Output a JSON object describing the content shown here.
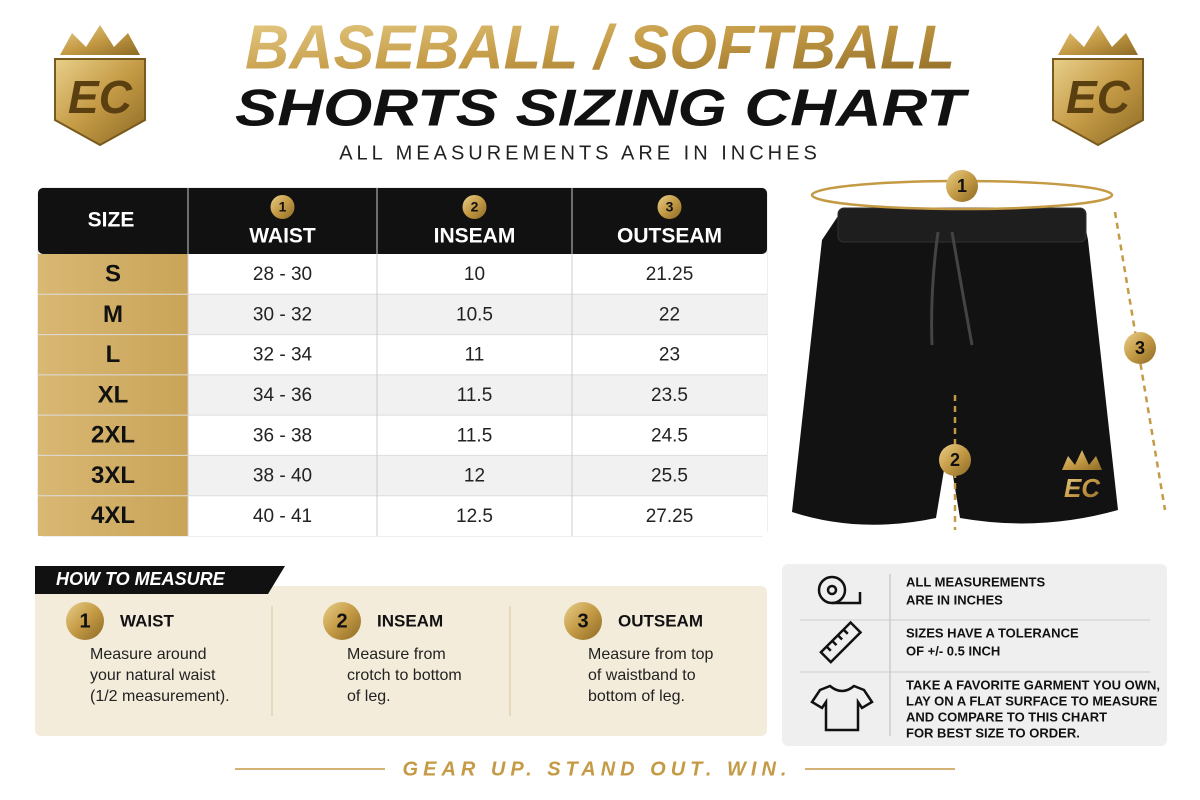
{
  "header": {
    "title_line1": "BASEBALL / SOFTBALL",
    "title_line2": "SHORTS SIZING CHART",
    "subtitle": "ALL MEASUREMENTS ARE IN INCHES",
    "logo": "EC"
  },
  "table": {
    "size_header": "SIZE",
    "columns": [
      {
        "number": 1,
        "label": "WAIST"
      },
      {
        "number": 2,
        "label": "INSEAM"
      },
      {
        "number": 3,
        "label": "OUTSEAM"
      }
    ],
    "rows": [
      [
        "S",
        "28 - 30",
        "10",
        "21.25"
      ],
      [
        "M",
        "30 - 32",
        "10.5",
        "22"
      ],
      [
        "L",
        "32 - 34",
        "11",
        "23"
      ],
      [
        "XL",
        "34 - 36",
        "11.5",
        "23.5"
      ],
      [
        "2XL",
        "36 - 38",
        "11.5",
        "24.5"
      ],
      [
        "3XL",
        "38 - 40",
        "12",
        "25.5"
      ],
      [
        "4XL",
        "40 - 41",
        "12.5",
        "27.25"
      ]
    ]
  },
  "how_to_measure": {
    "title": "HOW TO MEASURE",
    "steps": [
      {
        "number": 1,
        "label": "WAIST",
        "lines": [
          "Measure around",
          "your natural waist",
          "(1/2 measurement)."
        ]
      },
      {
        "number": 2,
        "label": "INSEAM",
        "lines": [
          "Measure from",
          "crotch to bottom",
          "of leg."
        ]
      },
      {
        "number": 3,
        "label": "OUTSEAM",
        "lines": [
          "Measure from top",
          "of waistband to",
          "bottom of leg."
        ]
      }
    ]
  },
  "notes": [
    {
      "lines": [
        "ALL MEASUREMENTS",
        "ARE IN INCHES"
      ]
    },
    {
      "lines": [
        "SIZES HAVE A TOLERANCE",
        "OF +/- 0.5 INCH"
      ]
    },
    {
      "lines": [
        "TAKE A FAVORITE GARMENT YOU OWN,",
        "LAY ON A FLAT SURFACE TO MEASURE",
        "AND COMPARE TO THIS CHART",
        "FOR BEST SIZE TO ORDER."
      ]
    }
  ],
  "footer": "GEAR UP. STAND OUT. WIN."
}
